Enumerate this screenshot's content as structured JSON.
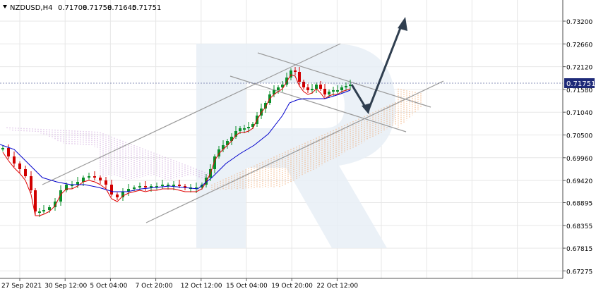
{
  "header": {
    "symbol": "NZDUSD,H4",
    "open": "0.71708",
    "high": "0.71758",
    "low": "0.71645",
    "close": "0.71751"
  },
  "price_axis": {
    "ticks": [
      "0.73200",
      "0.72660",
      "0.72120",
      "0.71580",
      "0.71040",
      "0.70500",
      "0.69960",
      "0.69420",
      "0.68895",
      "0.68355",
      "0.67815",
      "0.67275"
    ],
    "current_price": "0.71751"
  },
  "time_axis": {
    "labels": [
      "27 Sep 2021",
      "30 Sep 12:00",
      "5 Oct 04:00",
      "7 Oct 20:00",
      "12 Oct 12:00",
      "15 Oct 04:00",
      "19 Oct 20:00",
      "22 Oct 12:00"
    ]
  },
  "colors": {
    "bull": "#0a8f2a",
    "bear": "#d10000",
    "tenkan": "#e00000",
    "kijun": "#0000cc",
    "kumo_bear": "#c79ad6",
    "kumo_bull": "#f0a060",
    "trendline": "#9a9a9a",
    "arrow": "#2f3e4f",
    "grid": "#e7e7e7",
    "current_price_box": "#1e2a78"
  },
  "chart_data": {
    "type": "candlestick",
    "indicators": [
      "ichimoku"
    ],
    "ylim": [
      0.6705,
      0.7345
    ],
    "grid": true,
    "last_price": 0.71751,
    "forecast_arrows": [
      {
        "from": [
          0.7172,
          "22 Oct 12:00"
        ],
        "direction": "down",
        "to": 0.7099
      },
      {
        "from": 0.7099,
        "direction": "up",
        "to": 0.733
      }
    ]
  }
}
